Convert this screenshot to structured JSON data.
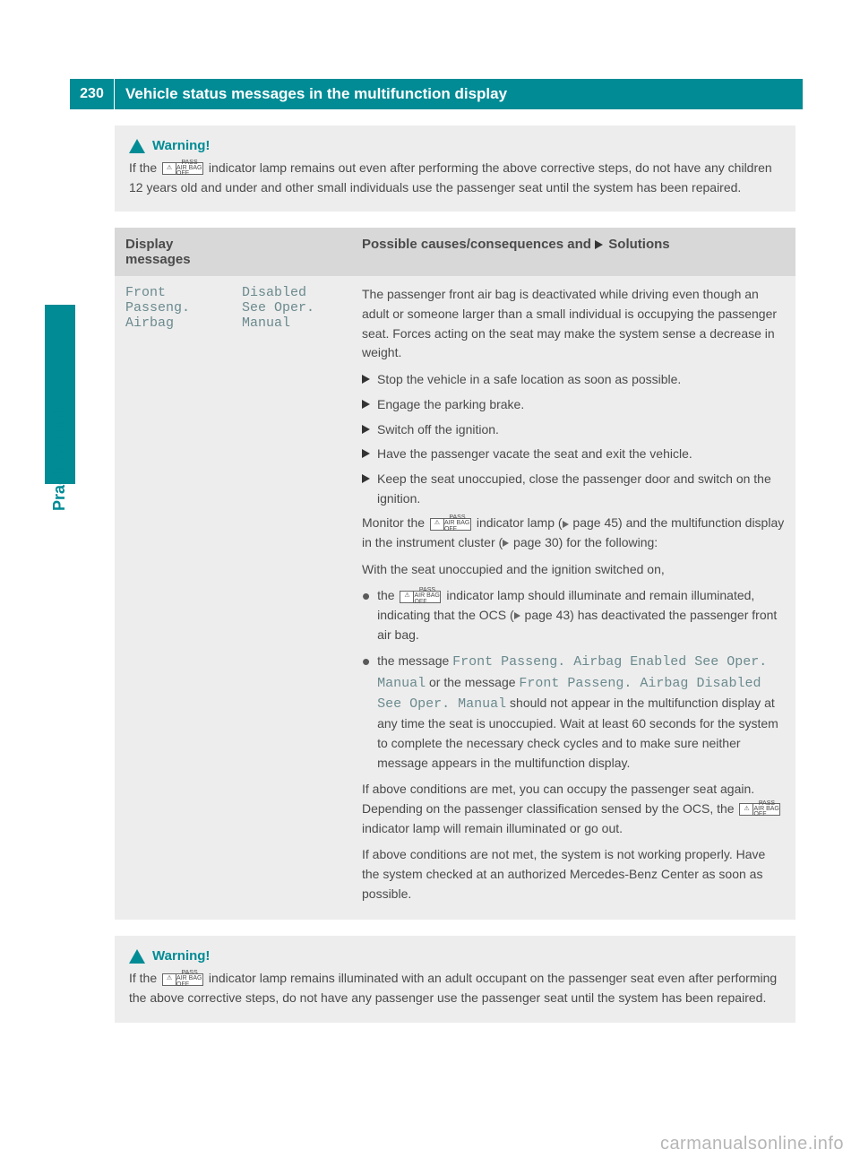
{
  "page_number": "230",
  "header_title": "Vehicle status messages in the multifunction display",
  "side_label": "Practical hints",
  "warning_label": "Warning!",
  "warning_top": "If the  indicator lamp remains out even after performing the above corrective steps, do not have any children 12 years old and under and other small individuals use the passenger seat until the system has been repaired.",
  "warning_bottom": "If the  indicator lamp remains illuminated with an adult occupant on the passenger seat even after performing the above corrective steps, do not have any passenger use the passenger seat until the system has been repaired.",
  "table": {
    "head_col1": "Display messages",
    "head_col3_a": "Possible causes/consequences and ",
    "head_col3_b": " Solutions",
    "col1_line1": "Front",
    "col1_line2": "Passeng.",
    "col1_line3": "Airbag",
    "col2_line1": "Disabled",
    "col2_line2": "See Oper.",
    "col2_line3": "Manual",
    "intro": "The passenger front air bag is deactivated while driving even though an adult or someone larger than a small individual is occupying the passenger seat. Forces acting on the seat may make the system sense a decrease in weight.",
    "steps": [
      "Stop the vehicle in a safe location as soon as possible.",
      "Engage the parking brake.",
      "Switch off the ignition.",
      "Have the passenger vacate the seat and exit the vehicle.",
      "Keep the seat unoccupied, close the passenger door and switch on the ignition."
    ],
    "monitor_a": "Monitor the ",
    "monitor_b": " indicator lamp (",
    "monitor_c": " page 45) and the multifunction display in the instrument cluster (",
    "monitor_d": " page 30) for the following:",
    "with_seat": "With the seat unoccupied and the ignition switched on,",
    "b1_a": "the ",
    "b1_b": " indicator lamp should illuminate and remain illuminated, indicating that the OCS (",
    "b1_c": " page 43) has deactivated the passenger front air bag.",
    "b2_a": "the message ",
    "b2_msg1": "Front Passeng. Airbag Enabled See Oper. Manual",
    "b2_b": " or the message ",
    "b2_msg2": "Front Passeng. Airbag Disabled See Oper. Manual",
    "b2_c": " should not appear in the multifunction display at any time the seat is unoccupied. Wait at least 60 seconds for the system to complete the necessary check cycles and to make sure neither message appears in the multifunction display.",
    "cond_met_a": "If above conditions are met, you can occupy the passenger seat again. Depending on the passenger classification sensed by the OCS, the ",
    "cond_met_b": " indicator lamp will remain illuminated or go out.",
    "cond_notmet": "If above conditions are not met, the system is not working properly. Have the system checked at an authorized Mercedes-Benz Center as soon as possible."
  },
  "watermark": "carmanualsonline.info",
  "icon": {
    "left": "⚠",
    "r1": "PASS",
    "r2": "AIR BAG OFF"
  },
  "colors": {
    "teal": "#008b95",
    "panel": "#ededed",
    "thead": "#d8d8d8",
    "mono": "#6b8a8e",
    "text": "#4a4a4a"
  }
}
